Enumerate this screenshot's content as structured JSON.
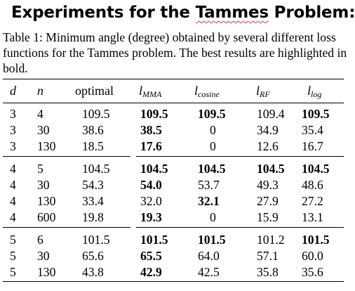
{
  "slide": {
    "title_before": "Experiments for the ",
    "title_misspelled": "Tammes",
    "title_after": " Problem:"
  },
  "caption": "Table 1: Minimum angle (degree) obtained by several different loss functions for the Tammes problem. The best results are highlighted in bold.",
  "table": {
    "header": {
      "d": "d",
      "n": "n",
      "optimal": "optimal",
      "mma_base": "l",
      "mma_sub": "MMA",
      "cos_base": "l",
      "cos_sub": "cosine",
      "rf_base": "l",
      "rf_sub": "RF",
      "log_base": "l",
      "log_sub": "log"
    },
    "rows": [
      {
        "d": "3",
        "n": "4",
        "optimal": "109.5",
        "mma": "109.5",
        "cosine": "109.5",
        "rf": "109.4",
        "log": "109.5",
        "bold": [
          "mma",
          "cosine",
          "log"
        ]
      },
      {
        "d": "3",
        "n": "30",
        "optimal": "38.6",
        "mma": "38.5",
        "cosine": "0",
        "rf": "34.9",
        "log": "35.4",
        "bold": [
          "mma"
        ]
      },
      {
        "d": "3",
        "n": "130",
        "optimal": "18.5",
        "mma": "17.6",
        "cosine": "0",
        "rf": "12.6",
        "log": "16.7",
        "bold": [
          "mma"
        ]
      },
      {
        "d": "4",
        "n": "5",
        "optimal": "104.5",
        "mma": "104.5",
        "cosine": "104.5",
        "rf": "104.5",
        "log": "104.5",
        "bold": [
          "mma",
          "cosine",
          "rf",
          "log"
        ]
      },
      {
        "d": "4",
        "n": "30",
        "optimal": "54.3",
        "mma": "54.0",
        "cosine": "53.7",
        "rf": "49.3",
        "log": "48.6",
        "bold": [
          "mma"
        ]
      },
      {
        "d": "4",
        "n": "130",
        "optimal": "33.4",
        "mma": "32.0",
        "cosine": "32.1",
        "rf": "27.9",
        "log": "27.2",
        "bold": [
          "cosine"
        ]
      },
      {
        "d": "4",
        "n": "600",
        "optimal": "19.8",
        "mma": "19.3",
        "cosine": "0",
        "rf": "15.9",
        "log": "13.1",
        "bold": [
          "mma"
        ]
      },
      {
        "d": "5",
        "n": "6",
        "optimal": "101.5",
        "mma": "101.5",
        "cosine": "101.5",
        "rf": "101.2",
        "log": "101.5",
        "bold": [
          "mma",
          "cosine",
          "log"
        ]
      },
      {
        "d": "5",
        "n": "30",
        "optimal": "65.6",
        "mma": "65.5",
        "cosine": "64.0",
        "rf": "57.1",
        "log": "60.0",
        "bold": [
          "mma"
        ]
      },
      {
        "d": "5",
        "n": "130",
        "optimal": "43.8",
        "mma": "42.9",
        "cosine": "42.5",
        "rf": "35.8",
        "log": "35.6",
        "bold": [
          "mma"
        ]
      }
    ]
  }
}
